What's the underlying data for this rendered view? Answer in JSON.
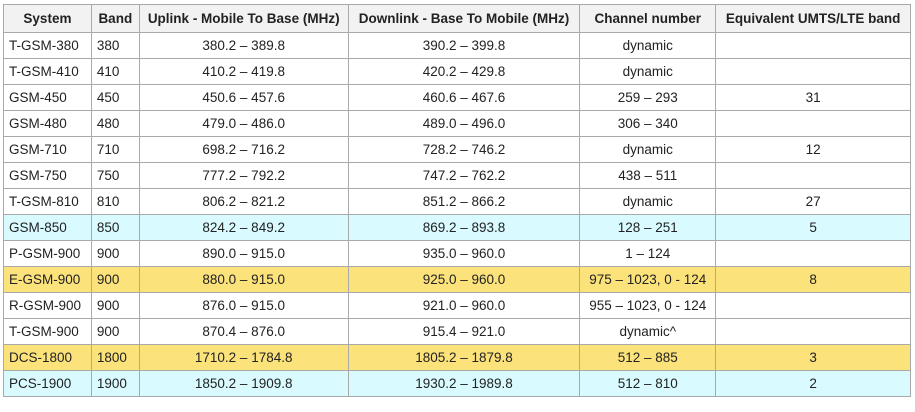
{
  "table": {
    "headers": [
      "System",
      "Band",
      "Uplink - Mobile To Base (MHz)",
      "Downlink - Base To Mobile (MHz)",
      "Channel number",
      "Equivalent UMTS/LTE band"
    ],
    "rows": [
      {
        "system": "T-GSM-380",
        "band": "380",
        "uplink": "380.2 – 389.8",
        "downlink": "390.2 – 399.8",
        "channel": "dynamic",
        "equivalent": "",
        "highlight": "none"
      },
      {
        "system": "T-GSM-410",
        "band": "410",
        "uplink": "410.2 – 419.8",
        "downlink": "420.2 – 429.8",
        "channel": "dynamic",
        "equivalent": "",
        "highlight": "none"
      },
      {
        "system": "GSM-450",
        "band": "450",
        "uplink": "450.6 – 457.6",
        "downlink": "460.6 – 467.6",
        "channel": "259 – 293",
        "equivalent": "31",
        "highlight": "none"
      },
      {
        "system": "GSM-480",
        "band": "480",
        "uplink": "479.0 – 486.0",
        "downlink": "489.0 – 496.0",
        "channel": "306 – 340",
        "equivalent": "",
        "highlight": "none"
      },
      {
        "system": "GSM-710",
        "band": "710",
        "uplink": "698.2 – 716.2",
        "downlink": "728.2 – 746.2",
        "channel": "dynamic",
        "equivalent": "12",
        "highlight": "none"
      },
      {
        "system": "GSM-750",
        "band": "750",
        "uplink": "777.2 – 792.2",
        "downlink": "747.2 – 762.2",
        "channel": "438 – 511",
        "equivalent": "",
        "highlight": "none"
      },
      {
        "system": "T-GSM-810",
        "band": "810",
        "uplink": "806.2 – 821.2",
        "downlink": "851.2 – 866.2",
        "channel": "dynamic",
        "equivalent": "27",
        "highlight": "none"
      },
      {
        "system": "GSM-850",
        "band": "850",
        "uplink": "824.2 – 849.2",
        "downlink": "869.2 – 893.8",
        "channel": "128 – 251",
        "equivalent": "5",
        "highlight": "cyan"
      },
      {
        "system": "P-GSM-900",
        "band": "900",
        "uplink": "890.0 – 915.0",
        "downlink": "935.0 – 960.0",
        "channel": "1 – 124",
        "equivalent": "",
        "highlight": "none"
      },
      {
        "system": "E-GSM-900",
        "band": "900",
        "uplink": "880.0 – 915.0",
        "downlink": "925.0 – 960.0",
        "channel": "975 – 1023, 0 - 124",
        "equivalent": "8",
        "highlight": "yellow"
      },
      {
        "system": "R-GSM-900",
        "band": "900",
        "uplink": "876.0 – 915.0",
        "downlink": "921.0 – 960.0",
        "channel": "955 – 1023, 0 - 124",
        "equivalent": "",
        "highlight": "none"
      },
      {
        "system": "T-GSM-900",
        "band": "900",
        "uplink": "870.4 – 876.0",
        "downlink": "915.4 – 921.0",
        "channel": "dynamic^",
        "equivalent": "",
        "highlight": "none"
      },
      {
        "system": "DCS-1800",
        "band": "1800",
        "uplink": "1710.2 – 1784.8",
        "downlink": "1805.2 – 1879.8",
        "channel": "512 – 885",
        "equivalent": "3",
        "highlight": "yellow"
      },
      {
        "system": "PCS-1900",
        "band": "1900",
        "uplink": "1850.2 – 1909.8",
        "downlink": "1930.2 – 1989.8",
        "channel": "512 – 810",
        "equivalent": "2",
        "highlight": "cyan"
      }
    ]
  },
  "colors": {
    "header_background": "#f2f2f2",
    "border": "#a9a9a9",
    "highlight_cyan": "#d9fbff",
    "highlight_yellow": "#fbe27a"
  }
}
